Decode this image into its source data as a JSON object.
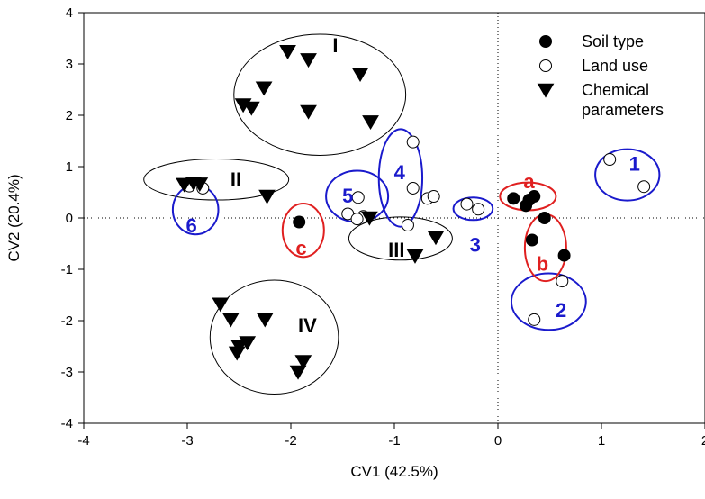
{
  "chart_data": {
    "type": "scatter",
    "title": "",
    "xlabel": "CV1 (42.5%)",
    "ylabel": "CV2 (20.4%)",
    "xlim": [
      -4,
      2
    ],
    "ylim": [
      -4,
      4
    ],
    "xticks": [
      "-4",
      "-3",
      "-2",
      "-1",
      "0",
      "1",
      "2"
    ],
    "yticks": [
      "-4",
      "-3",
      "-2",
      "-1",
      "0",
      "1",
      "2",
      "3",
      "4"
    ],
    "grid": false,
    "reference_lines": [
      {
        "axis": "x",
        "value": 0
      },
      {
        "axis": "y",
        "value": 0
      }
    ],
    "legend": {
      "position": "top-right",
      "entries": [
        {
          "name": "Soil type",
          "marker": "filled-circle"
        },
        {
          "name": "Land use",
          "marker": "open-circle"
        },
        {
          "name": "Chemical",
          "marker": "filled-triangle-down",
          "second_line": "parameters"
        }
      ]
    },
    "series": [
      {
        "name": "Soil type",
        "marker": "filled-circle",
        "points": [
          {
            "x": 0.15,
            "y": 0.38
          },
          {
            "x": 0.27,
            "y": 0.24
          },
          {
            "x": 0.3,
            "y": 0.35
          },
          {
            "x": 0.35,
            "y": 0.42
          },
          {
            "x": 0.45,
            "y": 0.0
          },
          {
            "x": 0.33,
            "y": -0.43
          },
          {
            "x": 0.64,
            "y": -0.73
          },
          {
            "x": -1.92,
            "y": -0.08
          }
        ]
      },
      {
        "name": "Land use",
        "marker": "open-circle",
        "points": [
          {
            "x": 1.08,
            "y": 1.14
          },
          {
            "x": 1.41,
            "y": 0.61
          },
          {
            "x": -2.98,
            "y": 0.62
          },
          {
            "x": -2.85,
            "y": 0.58
          },
          {
            "x": -1.35,
            "y": 0.4
          },
          {
            "x": -1.45,
            "y": 0.08
          },
          {
            "x": -1.3,
            "y": 0.03
          },
          {
            "x": -1.36,
            "y": -0.02
          },
          {
            "x": -0.82,
            "y": 1.48
          },
          {
            "x": -0.82,
            "y": 0.58
          },
          {
            "x": -0.68,
            "y": 0.38
          },
          {
            "x": -0.62,
            "y": 0.42
          },
          {
            "x": -0.87,
            "y": -0.14
          },
          {
            "x": -0.3,
            "y": 0.27
          },
          {
            "x": -0.19,
            "y": 0.17
          },
          {
            "x": 0.62,
            "y": -1.23
          },
          {
            "x": 0.35,
            "y": -1.98
          }
        ]
      },
      {
        "name": "Chemical parameters",
        "marker": "filled-triangle-down",
        "points": [
          {
            "x": -2.03,
            "y": 3.24
          },
          {
            "x": -1.83,
            "y": 3.08
          },
          {
            "x": -1.33,
            "y": 2.8
          },
          {
            "x": -2.26,
            "y": 2.53
          },
          {
            "x": -2.46,
            "y": 2.2
          },
          {
            "x": -2.38,
            "y": 2.14
          },
          {
            "x": -1.83,
            "y": 2.07
          },
          {
            "x": -1.23,
            "y": 1.87
          },
          {
            "x": -3.03,
            "y": 0.65
          },
          {
            "x": -2.94,
            "y": 0.68
          },
          {
            "x": -2.88,
            "y": 0.66
          },
          {
            "x": -2.23,
            "y": 0.42
          },
          {
            "x": -1.24,
            "y": 0.0
          },
          {
            "x": -0.6,
            "y": -0.38
          },
          {
            "x": -0.8,
            "y": -0.74
          },
          {
            "x": -2.68,
            "y": -1.68
          },
          {
            "x": -2.58,
            "y": -1.98
          },
          {
            "x": -2.25,
            "y": -1.98
          },
          {
            "x": -2.42,
            "y": -2.43
          },
          {
            "x": -2.5,
            "y": -2.5
          },
          {
            "x": -2.52,
            "y": -2.63
          },
          {
            "x": -1.88,
            "y": -2.8
          },
          {
            "x": -1.93,
            "y": -3.0
          }
        ]
      }
    ],
    "annotations": [
      {
        "id": "I",
        "label": "I",
        "color": "#000000",
        "label_at": [
          -1.57,
          3.33
        ],
        "ellipse": {
          "cx": -1.72,
          "cy": 2.4,
          "rx": 0.83,
          "ry": 1.18
        },
        "stroke": "#000000"
      },
      {
        "id": "II",
        "label": "II",
        "color": "#000000",
        "label_at": [
          -2.53,
          0.72
        ],
        "ellipse": {
          "cx": -2.72,
          "cy": 0.75,
          "rx": 0.7,
          "ry": 0.4
        },
        "stroke": "#000000"
      },
      {
        "id": "III",
        "label": "III",
        "color": "#000000",
        "label_at": [
          -0.98,
          -0.65
        ],
        "ellipse": {
          "cx": -0.94,
          "cy": -0.4,
          "rx": 0.5,
          "ry": 0.42
        },
        "stroke": "#000000"
      },
      {
        "id": "IV",
        "label": "IV",
        "color": "#000000",
        "label_at": [
          -1.84,
          -2.13
        ],
        "ellipse": {
          "cx": -2.16,
          "cy": -2.32,
          "rx": 0.62,
          "ry": 1.11
        },
        "stroke": "#000000"
      },
      {
        "id": "1",
        "label": "1",
        "color": "#1a1acc",
        "label_at": [
          1.32,
          1.02
        ],
        "ellipse": {
          "cx": 1.25,
          "cy": 0.84,
          "rx": 0.31,
          "ry": 0.5
        },
        "stroke": "#1a1acc"
      },
      {
        "id": "2",
        "label": "2",
        "color": "#1a1acc",
        "label_at": [
          0.61,
          -1.83
        ],
        "ellipse": {
          "cx": 0.49,
          "cy": -1.63,
          "rx": 0.36,
          "ry": 0.55
        },
        "stroke": "#1a1acc"
      },
      {
        "id": "3",
        "label": "3",
        "color": "#1a1acc",
        "label_at": [
          -0.22,
          -0.56
        ],
        "ellipse": {
          "cx": -0.24,
          "cy": 0.18,
          "rx": 0.19,
          "ry": 0.22
        },
        "stroke": "#1a1acc"
      },
      {
        "id": "4",
        "label": "4",
        "color": "#1a1acc",
        "label_at": [
          -0.95,
          0.86
        ],
        "ellipse": {
          "cx": -0.94,
          "cy": 0.78,
          "rx": 0.21,
          "ry": 0.95
        },
        "stroke": "#1a1acc"
      },
      {
        "id": "5",
        "label": "5",
        "color": "#1a1acc",
        "label_at": [
          -1.45,
          0.4
        ],
        "ellipse": {
          "cx": -1.36,
          "cy": 0.42,
          "rx": 0.3,
          "ry": 0.5
        },
        "stroke": "#1a1acc"
      },
      {
        "id": "6",
        "label": "6",
        "color": "#1a1acc",
        "label_at": [
          -2.96,
          -0.18
        ],
        "ellipse": {
          "cx": -2.92,
          "cy": 0.16,
          "rx": 0.22,
          "ry": 0.48
        },
        "stroke": "#1a1acc"
      },
      {
        "id": "a",
        "label": "a",
        "color": "#e02020",
        "label_at": [
          0.3,
          0.68
        ],
        "ellipse": {
          "cx": 0.29,
          "cy": 0.42,
          "rx": 0.27,
          "ry": 0.27
        },
        "stroke": "#e02020"
      },
      {
        "id": "b",
        "label": "b",
        "color": "#e02020",
        "label_at": [
          0.43,
          -0.92
        ],
        "ellipse": {
          "cx": 0.46,
          "cy": -0.58,
          "rx": 0.2,
          "ry": 0.65
        },
        "stroke": "#e02020"
      },
      {
        "id": "c",
        "label": "c",
        "color": "#e02020",
        "label_at": [
          -1.9,
          -0.62
        ],
        "ellipse": {
          "cx": -1.88,
          "cy": -0.24,
          "rx": 0.2,
          "ry": 0.52
        },
        "stroke": "#e02020"
      }
    ]
  }
}
